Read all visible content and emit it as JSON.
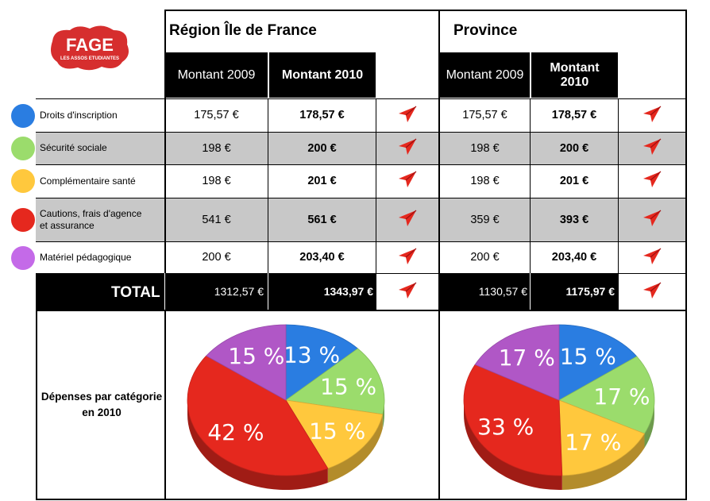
{
  "logo": {
    "text": "FAGE",
    "subtext": "LES ASSOS ETUDIANTES",
    "color": "#d62e2e"
  },
  "regions": [
    {
      "title": "Région Île de France"
    },
    {
      "title": "Province"
    }
  ],
  "columns": {
    "c2009": "Montant 2009",
    "c2010": "Montant 2010"
  },
  "rows": [
    {
      "label": "Droits d'inscription",
      "color": "#2a7de1",
      "idf_2009": "175,57 €",
      "idf_2010": "178,57 €",
      "prov_2009": "175,57 €",
      "prov_2010": "178,57 €"
    },
    {
      "label": "Sécurité sociale",
      "color": "#9bdc6c",
      "idf_2009": "198 €",
      "idf_2010": "200 €",
      "prov_2009": "198 €",
      "prov_2010": "200 €"
    },
    {
      "label": "Complémentaire santé",
      "color": "#ffc83d",
      "idf_2009": "198 €",
      "idf_2010": "201 €",
      "prov_2009": "198 €",
      "prov_2010": "201 €"
    },
    {
      "label_line1": "Cautions, frais d'agence",
      "label_line2": "et assurance",
      "color": "#e5281e",
      "idf_2009": "541 €",
      "idf_2010": "561 €",
      "prov_2009": "359 €",
      "prov_2010": "393 €"
    },
    {
      "label": "Matériel pédagogique",
      "color": "#c46ae8",
      "idf_2009": "200 €",
      "idf_2010": "203,40 €",
      "prov_2009": "200 €",
      "prov_2010": "203,40 €"
    }
  ],
  "total": {
    "label": "TOTAL",
    "idf_2009": "1312,57 €",
    "idf_2010": "1343,97 €",
    "prov_2009": "1130,57 €",
    "prov_2010": "1175,97 €"
  },
  "depenses_label_line1": "Dépenses par catégorie",
  "depenses_label_line2": "en 2010",
  "chart_data": [
    {
      "type": "pie",
      "slices": [
        {
          "label": "13 %",
          "value": 13,
          "color": "#2a7de1"
        },
        {
          "label": "15 %",
          "value": 15,
          "color": "#9bdc6c"
        },
        {
          "label": "15 %",
          "value": 15,
          "color": "#ffc83d"
        },
        {
          "label": "42 %",
          "value": 42,
          "color": "#e5281e"
        },
        {
          "label": "15 %",
          "value": 15,
          "color": "#b057c6"
        }
      ]
    },
    {
      "type": "pie",
      "slices": [
        {
          "label": "15 %",
          "value": 15,
          "color": "#2a7de1"
        },
        {
          "label": "17 %",
          "value": 17,
          "color": "#9bdc6c"
        },
        {
          "label": "17 %",
          "value": 17,
          "color": "#ffc83d"
        },
        {
          "label": "33 %",
          "value": 33,
          "color": "#e5281e"
        },
        {
          "label": "17 %",
          "value": 17,
          "color": "#b057c6"
        }
      ]
    }
  ]
}
